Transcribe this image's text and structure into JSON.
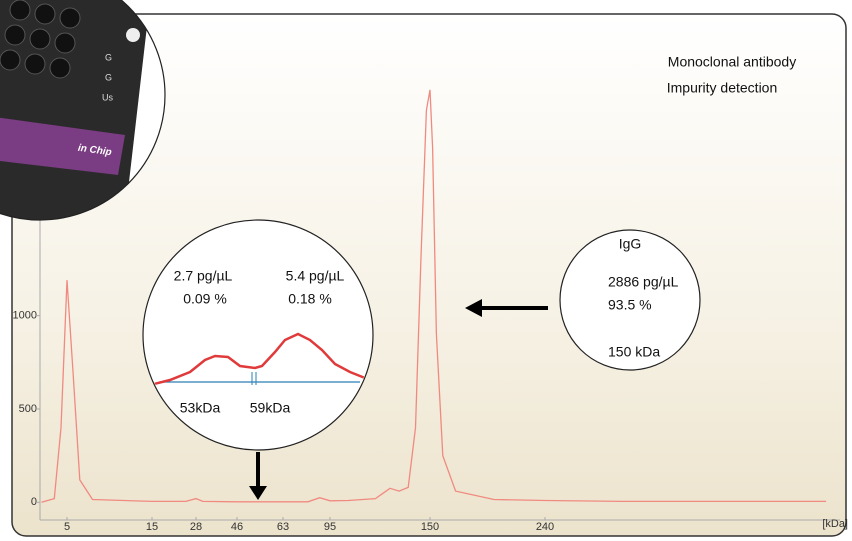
{
  "chart_data": {
    "type": "line",
    "x_label": "[kDa]",
    "x": [
      2,
      3.5,
      4.3,
      5,
      5.7,
      6.5,
      8,
      15,
      25,
      28,
      31,
      46,
      63,
      80,
      88,
      95,
      105,
      120,
      128,
      133,
      138,
      142,
      145,
      148,
      150,
      152,
      155,
      160,
      170,
      200,
      240,
      300,
      460
    ],
    "values": [
      0,
      20,
      400,
      1190,
      700,
      120,
      15,
      5,
      5,
      20,
      5,
      3,
      3,
      3,
      25,
      8,
      10,
      20,
      75,
      60,
      80,
      400,
      1300,
      2100,
      2210,
      1900,
      900,
      250,
      60,
      15,
      10,
      5,
      5
    ],
    "color": "#f08a80",
    "ylim": [
      -100,
      2600
    ],
    "yticks": [
      0,
      500,
      1000
    ],
    "xticks": [
      5,
      15,
      28,
      46,
      63,
      95,
      150,
      240
    ]
  },
  "annotations": {
    "title": [
      "Monoclonal antibody",
      "Impurity detection"
    ],
    "zoom": {
      "left": [
        "2.7 pg/µL",
        "0.09 %"
      ],
      "right": [
        "5.4 pg/µL",
        "0.18 %"
      ],
      "sizes": [
        "53kDa",
        "59kDa"
      ]
    },
    "igg": [
      "IgG",
      "2886 pg/µL",
      "93.5 %",
      "150 kDa"
    ],
    "chip": [
      "G",
      "G",
      "Us",
      "in Chip"
    ]
  }
}
